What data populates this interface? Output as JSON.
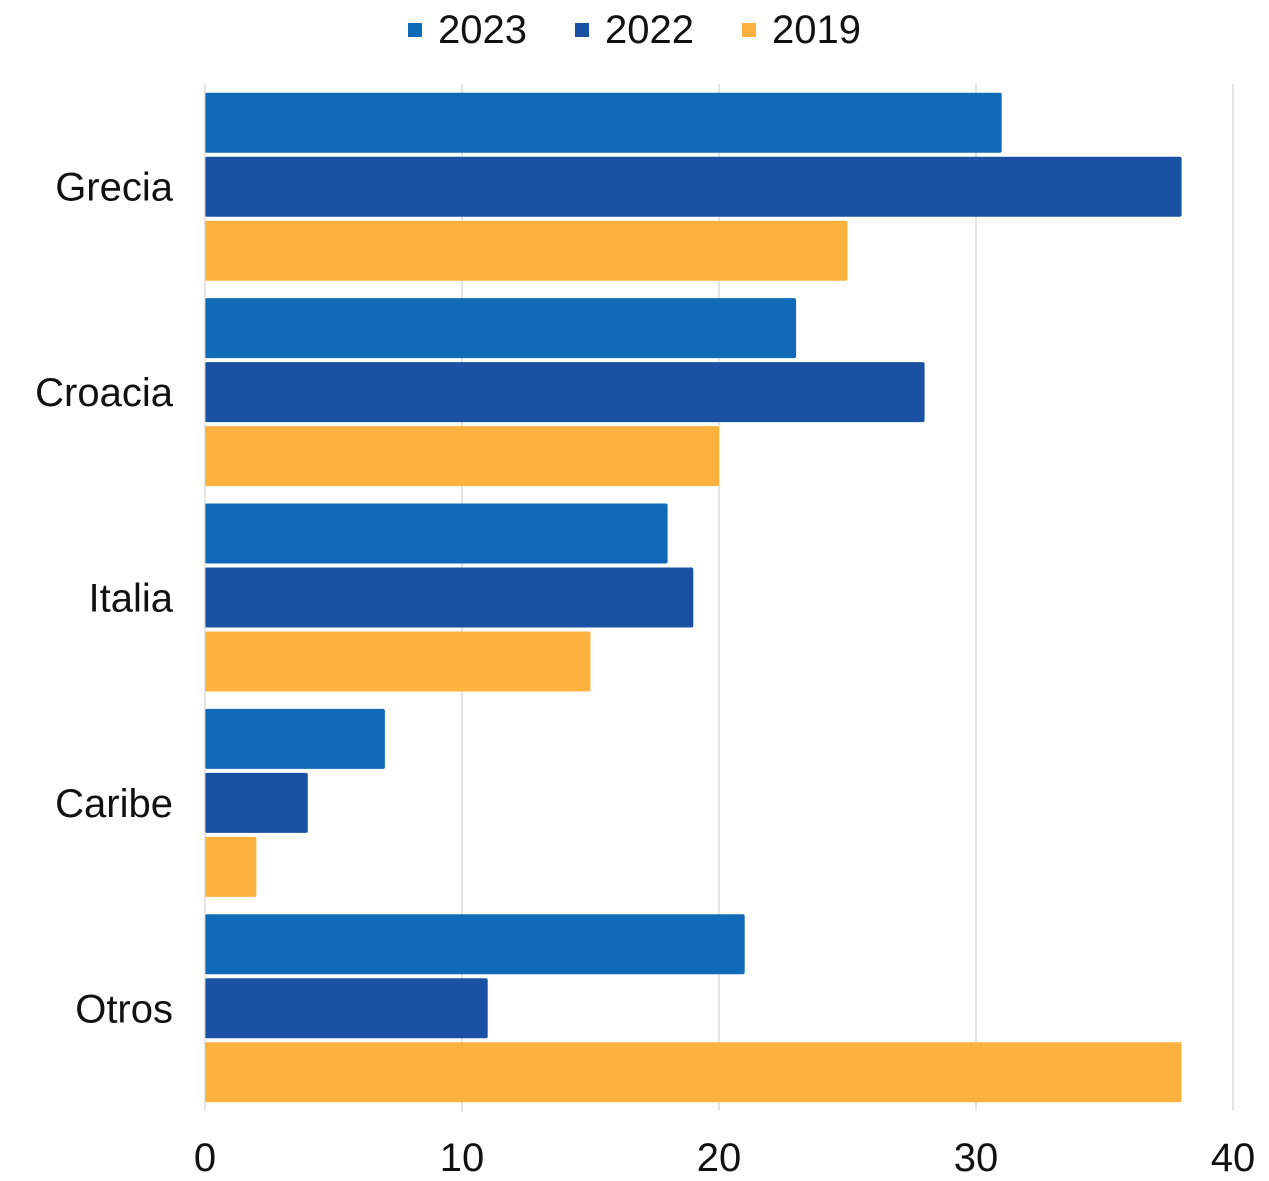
{
  "chart_data": {
    "type": "bar",
    "orientation": "horizontal",
    "categories": [
      "Grecia",
      "Croacia",
      "Italia",
      "Caribe",
      "Otros"
    ],
    "series": [
      {
        "name": "2023",
        "color": "#106AB7",
        "values": [
          31,
          23,
          18,
          7,
          21
        ]
      },
      {
        "name": "2022",
        "color": "#1B51A3",
        "values": [
          38,
          28,
          19,
          4,
          11
        ]
      },
      {
        "name": "2019",
        "color": "#FDB240",
        "values": [
          25,
          20,
          15,
          2,
          38
        ]
      }
    ],
    "xlim": [
      0,
      40
    ],
    "xticks": [
      "0",
      "10",
      "20",
      "30",
      "40"
    ],
    "grid": "vertical",
    "legend_position": "top-center",
    "title": "",
    "xlabel": "",
    "ylabel": ""
  }
}
